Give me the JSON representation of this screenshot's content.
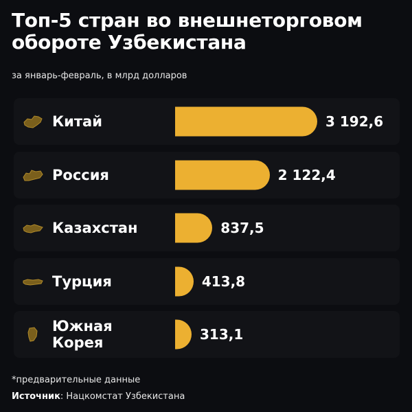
{
  "title": "Топ-5 стран во внешнеторговом обороте Узбекистана",
  "subtitle": "за январь-февраль, в млрд долларов",
  "footnote": "*предварительные данные",
  "source": {
    "label": "Источник",
    "text": ": Нацкомстат Узбекистана"
  },
  "colors": {
    "background": "#0c0d11",
    "card": "#121317",
    "bar": "#ecb031",
    "flag": "#7a5f1c"
  },
  "rows": [
    {
      "country": "Китай",
      "value_label": "3 192,6",
      "icon": "china-map-icon"
    },
    {
      "country": "Россия",
      "value_label": "2 122,4",
      "icon": "russia-map-icon"
    },
    {
      "country": "Казахстан",
      "value_label": "837,5",
      "icon": "kazakhstan-map-icon"
    },
    {
      "country": "Турция",
      "value_label": "413,8",
      "icon": "turkey-map-icon"
    },
    {
      "country": "Южная Корея",
      "value_label": "313,1",
      "icon": "south-korea-map-icon"
    }
  ],
  "chart_data": {
    "type": "bar",
    "orientation": "horizontal",
    "title": "Топ-5 стран во внешнеторговом обороте Узбекистана",
    "subtitle": "за январь-февраль, в млрд долларов",
    "categories": [
      "Китай",
      "Россия",
      "Казахстан",
      "Турция",
      "Южная Корея"
    ],
    "values": [
      3192.6,
      2122.4,
      837.5,
      413.8,
      313.1
    ],
    "xlabel": "",
    "ylabel": "",
    "grid": false,
    "legend": null,
    "annotations": [
      "*предварительные данные",
      "Источник: Нацкомстат Узбекистана"
    ]
  }
}
